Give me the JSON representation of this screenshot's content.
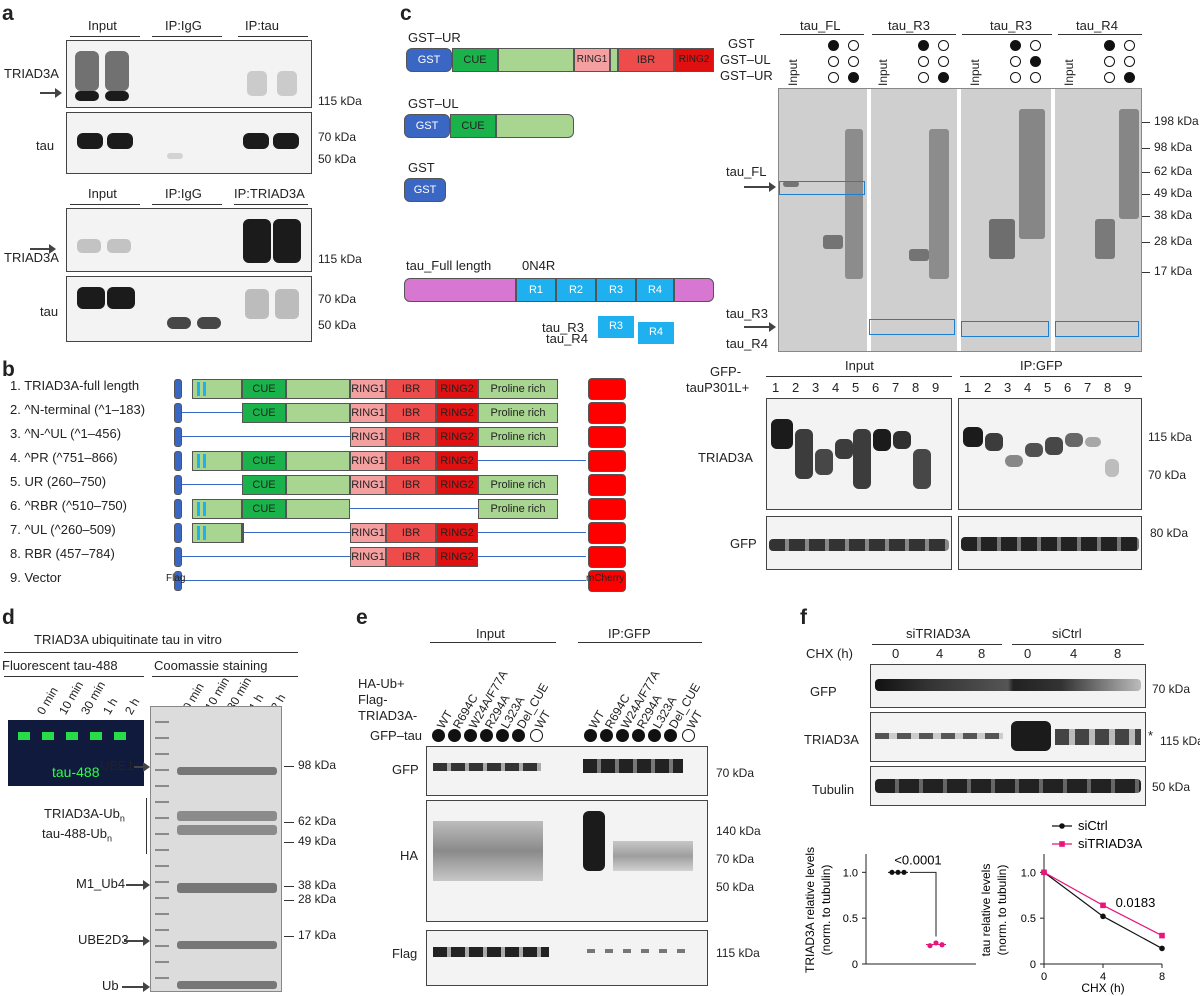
{
  "panel_a": {
    "label": "a",
    "top_headers": [
      "Input",
      "IP:IgG",
      "IP:tau"
    ],
    "bottom_headers": [
      "Input",
      "IP:IgG",
      "IP:TRIAD3A"
    ],
    "row_triad": "TRIAD3A",
    "row_tau": "tau",
    "kda_115": "115 kDa",
    "kda_70": "70 kDa",
    "kda_50": "50 kDa"
  },
  "panel_b": {
    "label": "b",
    "constructs": [
      "1. TRIAD3A-full length",
      "2. ^N-terminal (^1–183)",
      "3. ^N-^UL (^1–456)",
      "4. ^PR (^751–866)",
      "5. UR (260–750)",
      "6. ^RBR (^510–750)",
      "7. ^UL (^260–509)",
      "8. RBR (457–784)",
      "9. Vector"
    ],
    "cue": "CUE",
    "ring1": "RING1",
    "ibr": "IBR",
    "ring2": "RING2",
    "proline": "Proline rich",
    "flag": "Flag",
    "mcherry": "mCherry"
  },
  "panel_c": {
    "label": "c",
    "gst_ur": "GST–UR",
    "gst_ul": "GST–UL",
    "gst": "GST",
    "cue": "CUE",
    "ring1": "RING1",
    "ibr": "IBR",
    "ring2": "RING2",
    "tau_full": "tau_Full length",
    "on4r": "0N4R",
    "r1": "R1",
    "r2": "R2",
    "r3": "R3",
    "r4": "R4",
    "tau_r3": "tau_R3",
    "tau_r4": "tau_R4",
    "gel_headers": [
      "tau_FL",
      "tau_R3",
      "tau_R3",
      "tau_R4"
    ],
    "row_gst": "GST",
    "row_gst_ul": "GST–UL",
    "row_gst_ur": "GST–UR",
    "input": "Input",
    "tau_fl_label": "tau_FL",
    "kda": [
      "198 kDa",
      "98 kDa",
      "62 kDa",
      "49 kDa",
      "38 kDa",
      "28 kDa",
      "17 kDa"
    ],
    "ip_input": "Input",
    "ip_gfp": "IP:GFP",
    "gfp_taup301l": "GFP-",
    "gfp_taup301l_2": "tauP301L+",
    "lanes": [
      "1",
      "2",
      "3",
      "4",
      "5",
      "6",
      "7",
      "8",
      "9"
    ],
    "row_triad": "TRIAD3A",
    "row_gfp": "GFP",
    "kda_115": "115 kDa",
    "kda_70": "70 kDa",
    "kda_80": "80 kDa"
  },
  "panel_d": {
    "label": "d",
    "title": "TRIAD3A ubiquitinate tau in vitro",
    "fluor": "Fluorescent tau-488",
    "coomassie": "Coomassie staining",
    "times": [
      "0 min",
      "10 min",
      "30 min",
      "1 h",
      "2 h"
    ],
    "tau488": "tau-488",
    "ube1": "UBE1",
    "triad_ub": "TRIAD3A-Ub",
    "tau_ub": "tau-488-Ub",
    "sub_n": "n",
    "m1ub4": "M1_Ub4",
    "ube2d3": "UBE2D3",
    "ub": "Ub",
    "kda": [
      "98 kDa",
      "62 kDa",
      "49 kDa",
      "38 kDa",
      "28 kDa",
      "17 kDa"
    ]
  },
  "panel_e": {
    "label": "e",
    "input": "Input",
    "ip_gfp": "IP:GFP",
    "rowlabels": [
      "HA-Ub+",
      "Flag-",
      "TRIAD3A-",
      "GFP–tau"
    ],
    "lanes": [
      "WT",
      "R694C",
      "W24A/F77A",
      "R294A",
      "L323A",
      "Del_CUE",
      "WT"
    ],
    "row_gfp": "GFP",
    "row_ha": "HA",
    "row_flag": "Flag",
    "kda_70": "70 kDa",
    "kda_140": "140 kDa",
    "kda_70b": "70 kDa",
    "kda_50": "50 kDa",
    "kda_115": "115 kDa"
  },
  "panel_f": {
    "label": "f",
    "si_triad": "siTRIAD3A",
    "si_ctrl": "siCtrl",
    "chx": "CHX (h)",
    "chx_vals": [
      "0",
      "4",
      "8",
      "0",
      "4",
      "8"
    ],
    "row_gfp": "GFP",
    "row_triad": "TRIAD3A",
    "row_tubulin": "Tubulin",
    "kda_70": "70 kDa",
    "kda_115": "115 kDa",
    "kda_50": "50 kDa",
    "star": "*"
  },
  "chart_data": [
    {
      "type": "scatter",
      "ylabel": "TRIAD3A relative levels (norm. to tubulin)",
      "yticks": [
        "0",
        "0.5",
        "1.0"
      ],
      "ylim": [
        0,
        1.2
      ],
      "annotation": "<0.0001",
      "series": [
        {
          "values": [
            1.0,
            1.0,
            1.0
          ],
          "color": "#111111"
        },
        {
          "values": [
            0.2,
            0.23,
            0.21
          ],
          "color": "#e8157c"
        }
      ]
    },
    {
      "type": "line",
      "xlabel": "CHX (h)",
      "ylabel": "tau relative levels (norm. to tubulin)",
      "xticks": [
        "0",
        "4",
        "8"
      ],
      "yticks": [
        "0",
        "0.5",
        "1.0"
      ],
      "x": [
        0,
        4,
        8
      ],
      "ylim": [
        0,
        1.2
      ],
      "annotation": "0.0183",
      "series": [
        {
          "name": "siCtrl",
          "values": [
            1.0,
            0.52,
            0.17
          ],
          "color": "#111111"
        },
        {
          "name": "siTRIAD3A",
          "values": [
            1.0,
            0.64,
            0.31
          ],
          "color": "#e8157c"
        }
      ]
    }
  ]
}
